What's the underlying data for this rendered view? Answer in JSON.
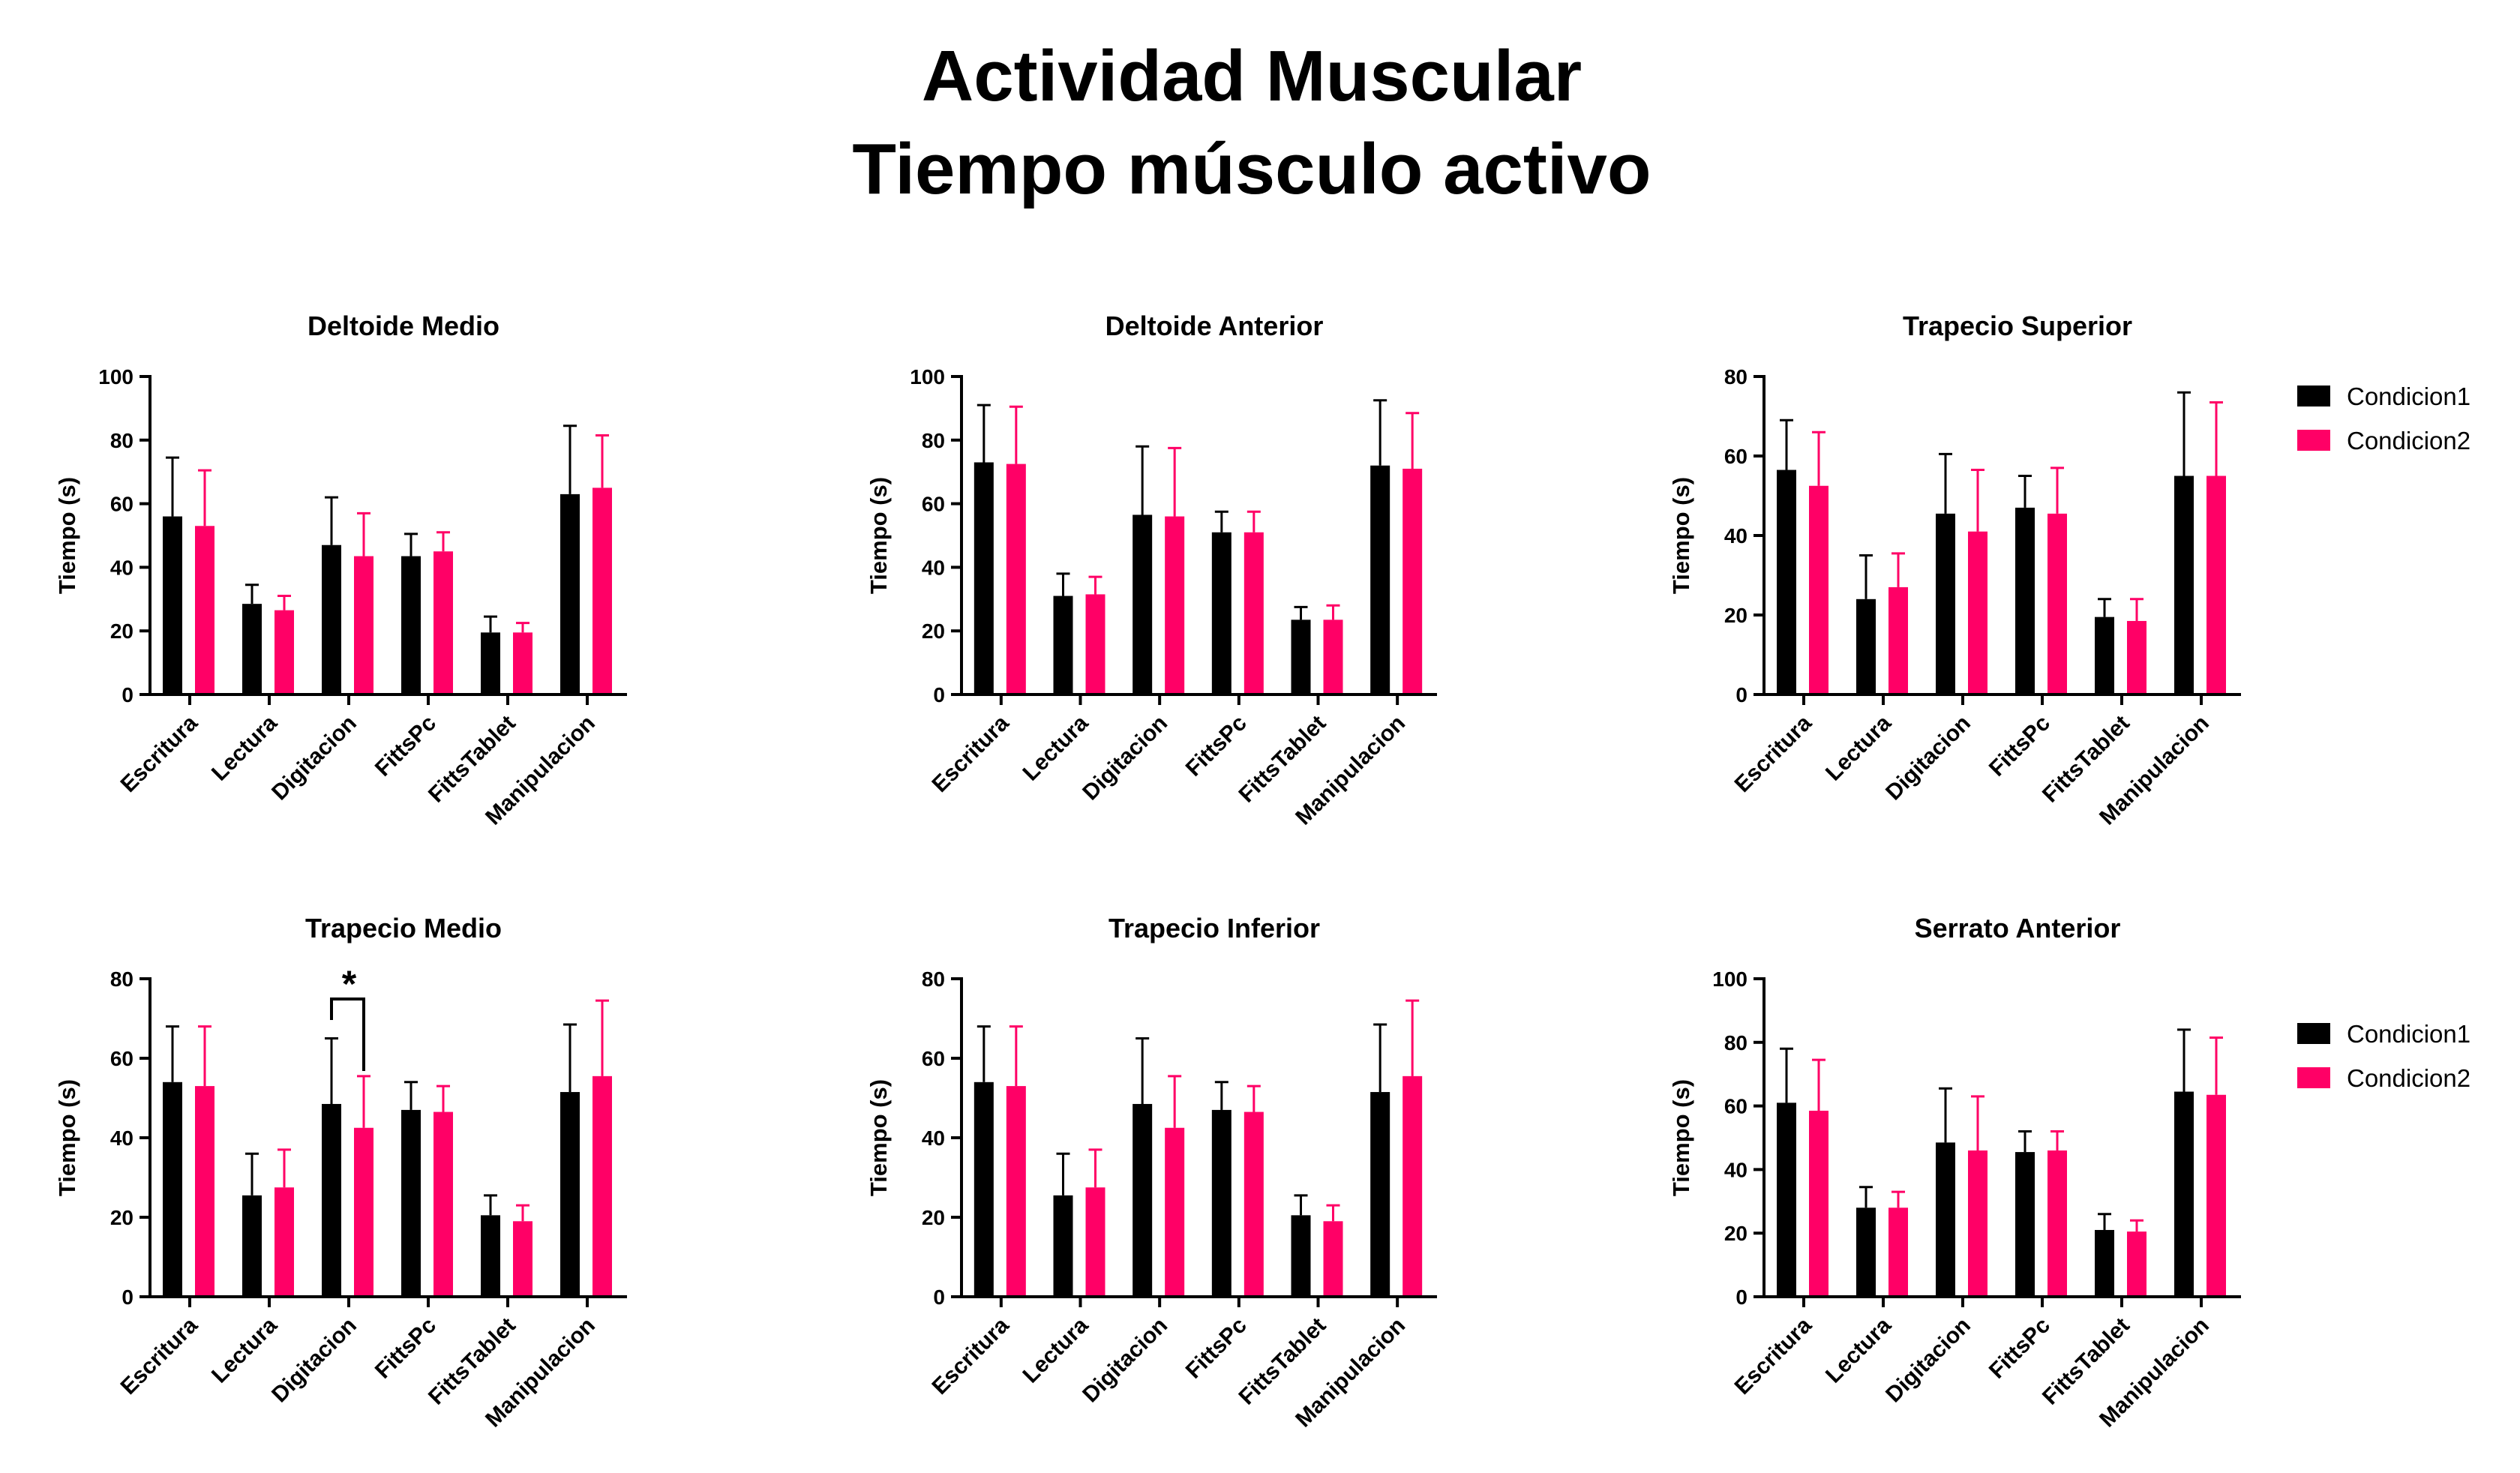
{
  "title": {
    "line1": "Actividad Muscular",
    "line2": "Tiempo músculo activo"
  },
  "legend": {
    "items": [
      {
        "label": "Condicion1",
        "color": "#000000"
      },
      {
        "label": "Condicion2",
        "color": "#ff0066"
      }
    ]
  },
  "chart_data": [
    {
      "type": "bar",
      "title": "Deltoide  Medio",
      "ylabel": "Tiempo (s)",
      "ylim": [
        0,
        100
      ],
      "yticks": [
        0,
        20,
        40,
        60,
        80,
        100
      ],
      "categories": [
        "Escritura",
        "Lectura",
        "Digitacion",
        "FittsPc",
        "FittsTablet",
        "Manipulacion"
      ],
      "series": [
        {
          "name": "Condicion1",
          "values": [
            56,
            28.5,
            47,
            43.5,
            19.5,
            63
          ],
          "errors": [
            18.5,
            6,
            15,
            7,
            5,
            21.5
          ]
        },
        {
          "name": "Condicion2",
          "values": [
            53,
            26.5,
            43.5,
            45,
            19.5,
            65
          ],
          "errors": [
            17.5,
            4.5,
            13.5,
            6,
            3,
            16.5
          ]
        }
      ]
    },
    {
      "type": "bar",
      "title": "Deltoide  Anterior",
      "ylabel": "Tiempo (s)",
      "ylim": [
        0,
        100
      ],
      "yticks": [
        0,
        20,
        40,
        60,
        80,
        100
      ],
      "categories": [
        "Escritura",
        "Lectura",
        "Digitacion",
        "FittsPc",
        "FittsTablet",
        "Manipulacion"
      ],
      "series": [
        {
          "name": "Condicion1",
          "values": [
            73,
            31,
            56.5,
            51,
            23.5,
            72
          ],
          "errors": [
            18,
            7,
            21.5,
            6.5,
            4,
            20.5
          ]
        },
        {
          "name": "Condicion2",
          "values": [
            72.5,
            31.5,
            56,
            51,
            23.5,
            71
          ],
          "errors": [
            18,
            5.5,
            21.5,
            6.5,
            4.5,
            17.5
          ]
        }
      ]
    },
    {
      "type": "bar",
      "title": "Trapecio  Superior",
      "ylabel": "Tiempo (s)",
      "ylim": [
        0,
        80
      ],
      "yticks": [
        0,
        20,
        40,
        60,
        80
      ],
      "categories": [
        "Escritura",
        "Lectura",
        "Digitacion",
        "FittsPc",
        "FittsTablet",
        "Manipulacion"
      ],
      "series": [
        {
          "name": "Condicion1",
          "values": [
            56.5,
            24,
            45.5,
            47,
            19.5,
            55
          ],
          "errors": [
            12.5,
            11,
            15,
            8,
            4.5,
            21
          ]
        },
        {
          "name": "Condicion2",
          "values": [
            52.5,
            27,
            41,
            45.5,
            18.5,
            55
          ],
          "errors": [
            13.5,
            8.5,
            15.5,
            11.5,
            5.5,
            18.5
          ]
        }
      ]
    },
    {
      "type": "bar",
      "title": "Trapecio  Medio",
      "ylabel": "Tiempo (s)",
      "ylim": [
        0,
        80
      ],
      "yticks": [
        0,
        20,
        40,
        60,
        80
      ],
      "categories": [
        "Escritura",
        "Lectura",
        "Digitacion",
        "FittsPc",
        "FittsTablet",
        "Manipulacion"
      ],
      "series": [
        {
          "name": "Condicion1",
          "values": [
            54,
            25.5,
            48.5,
            47,
            20.5,
            51.5
          ],
          "errors": [
            14,
            10.5,
            16.5,
            7,
            5,
            17
          ]
        },
        {
          "name": "Condicion2",
          "values": [
            53,
            27.5,
            42.5,
            46.5,
            19,
            55.5
          ],
          "errors": [
            15,
            9.5,
            13,
            6.5,
            4,
            19
          ]
        }
      ],
      "annotations": [
        {
          "text": "*",
          "category_index": 2
        }
      ]
    },
    {
      "type": "bar",
      "title": "Trapecio  Inferior",
      "ylabel": "Tiempo (s)",
      "ylim": [
        0,
        80
      ],
      "yticks": [
        0,
        20,
        40,
        60,
        80
      ],
      "categories": [
        "Escritura",
        "Lectura",
        "Digitacion",
        "FittsPc",
        "FittsTablet",
        "Manipulacion"
      ],
      "series": [
        {
          "name": "Condicion1",
          "values": [
            54,
            25.5,
            48.5,
            47,
            20.5,
            51.5
          ],
          "errors": [
            14,
            10.5,
            16.5,
            7,
            5,
            17
          ]
        },
        {
          "name": "Condicion2",
          "values": [
            53,
            27.5,
            42.5,
            46.5,
            19,
            55.5
          ],
          "errors": [
            15,
            9.5,
            13,
            6.5,
            4,
            19
          ]
        }
      ]
    },
    {
      "type": "bar",
      "title": "Serrato Anterior",
      "ylabel": "Tiempo (s)",
      "ylim": [
        0,
        100
      ],
      "yticks": [
        0,
        20,
        40,
        60,
        80,
        100
      ],
      "categories": [
        "Escritura",
        "Lectura",
        "Digitacion",
        "FittsPc",
        "FittsTablet",
        "Manipulacion"
      ],
      "series": [
        {
          "name": "Condicion1",
          "values": [
            61,
            28,
            48.5,
            45.5,
            21,
            64.5
          ],
          "errors": [
            17,
            6.5,
            17,
            6.5,
            5,
            19.5
          ]
        },
        {
          "name": "Condicion2",
          "values": [
            58.5,
            28,
            46,
            46,
            20.5,
            63.5
          ],
          "errors": [
            16,
            5,
            17,
            6,
            3.5,
            18
          ]
        }
      ]
    }
  ]
}
